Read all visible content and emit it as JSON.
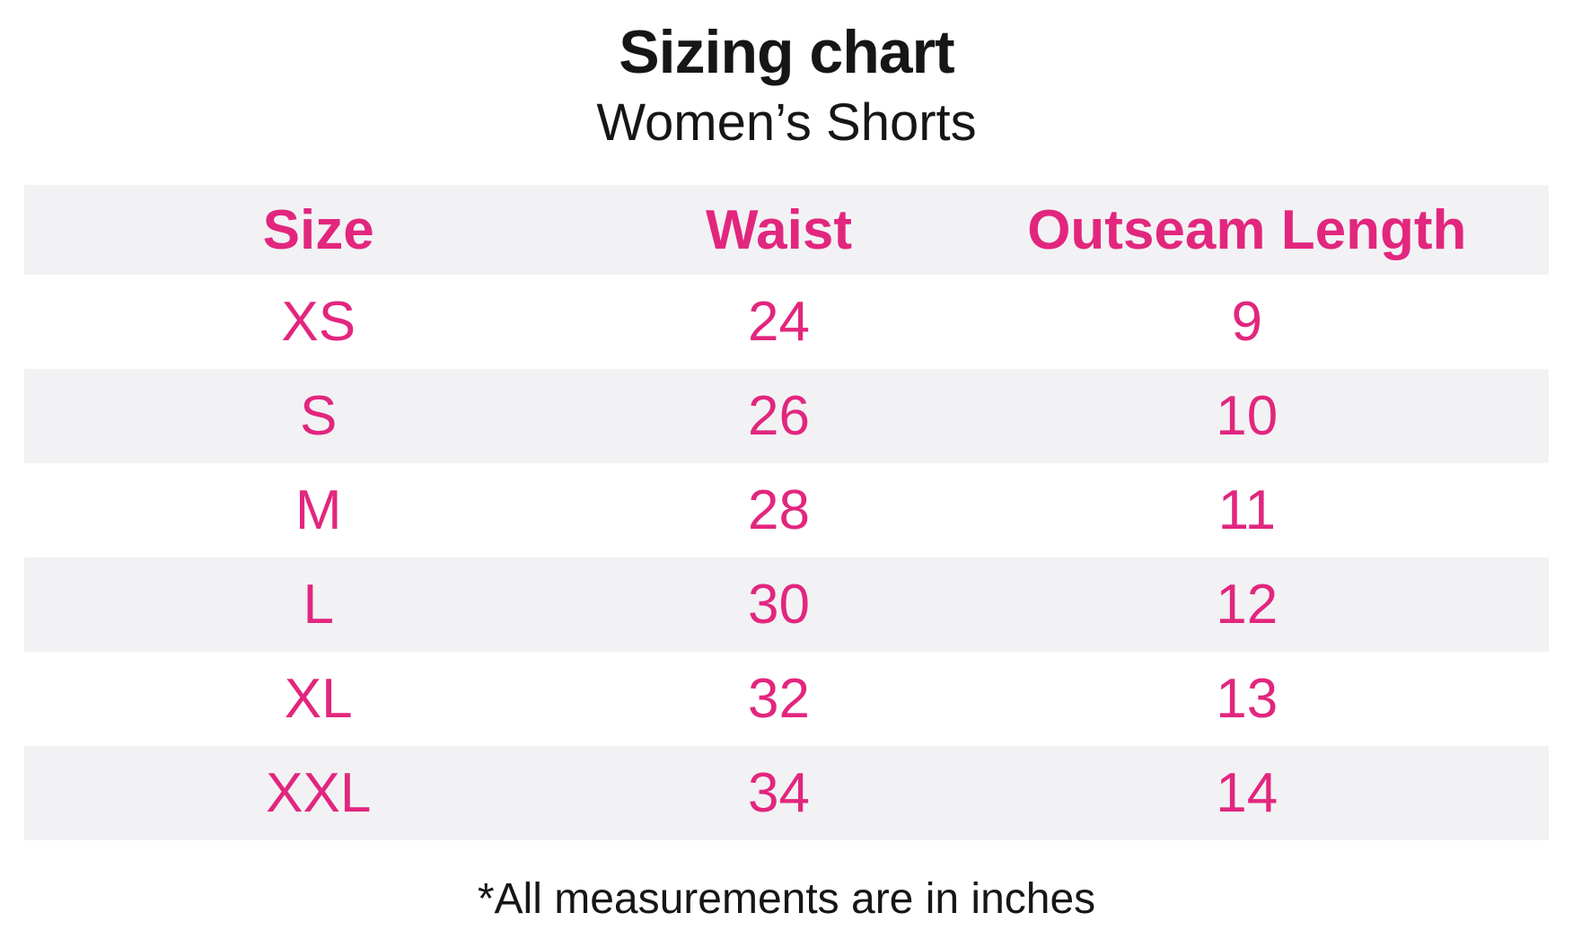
{
  "header": {
    "title": "Sizing chart",
    "subtitle": "Women’s Shorts"
  },
  "footnote": "*All measurements are in inches",
  "colors": {
    "accent_pink": "#e2267e",
    "alt_row_bg": "#f2f2f4",
    "text_black": "#161616",
    "page_bg": "#ffffff"
  },
  "chart_data": {
    "type": "table",
    "title": "Sizing chart",
    "subtitle": "Women’s Shorts",
    "columns": [
      "Size",
      "Waist",
      "Outseam Length"
    ],
    "rows": [
      [
        "XS",
        "24",
        "9"
      ],
      [
        "S",
        "26",
        "10"
      ],
      [
        "M",
        "28",
        "11"
      ],
      [
        "L",
        "30",
        "12"
      ],
      [
        "XL",
        "32",
        "13"
      ],
      [
        "XXL",
        "34",
        "14"
      ]
    ],
    "footnote": "*All measurements are in inches",
    "units": "inches",
    "layout_hints": {
      "header_bg": "#f2f2f4",
      "alternating_rows": true,
      "first_data_row_bg": "#ffffff",
      "text_alignment": "center"
    }
  }
}
